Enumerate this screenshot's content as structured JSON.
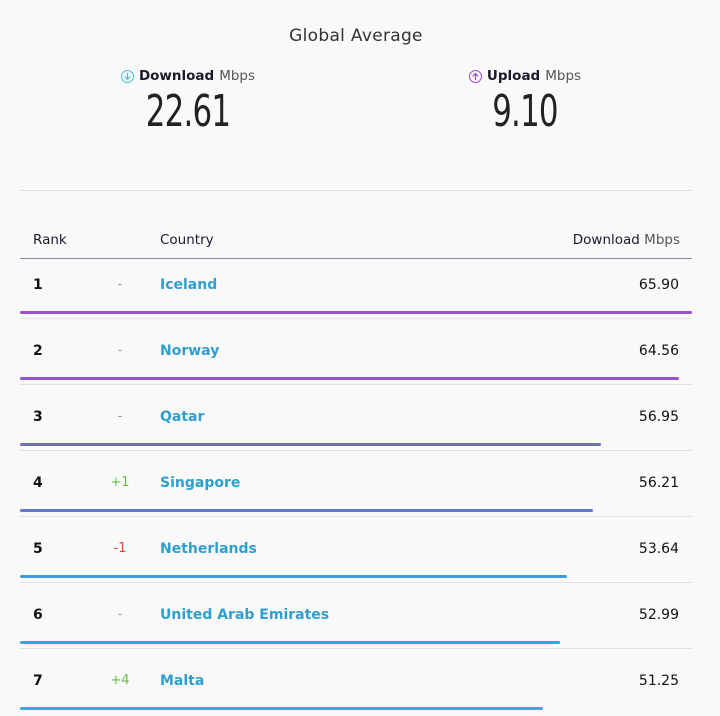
{
  "header": {
    "title": "Global Average"
  },
  "download": {
    "label": "Download",
    "unit": "Mbps",
    "value": "22.61",
    "icon": "download-arrow-icon",
    "color": "#3ec6d1"
  },
  "upload": {
    "label": "Upload",
    "unit": "Mbps",
    "value": "9.10",
    "icon": "upload-arrow-icon",
    "color": "#a046d6"
  },
  "table": {
    "columns": {
      "rank": "Rank",
      "country": "Country",
      "download": "Download",
      "download_unit": "Mbps"
    },
    "rows": [
      {
        "rank": "1",
        "change": "-",
        "country": "Iceland",
        "value": "65.90",
        "fraction": 1.0,
        "bar_color": "#9c4fd0"
      },
      {
        "rank": "2",
        "change": "-",
        "country": "Norway",
        "value": "64.56",
        "fraction": 0.98,
        "bar_color": "#9553cf"
      },
      {
        "rank": "3",
        "change": "-",
        "country": "Qatar",
        "value": "56.95",
        "fraction": 0.864,
        "bar_color": "#6d6bd0"
      },
      {
        "rank": "4",
        "change": "+1",
        "country": "Singapore",
        "value": "56.21",
        "fraction": 0.853,
        "bar_color": "#617ad2"
      },
      {
        "rank": "5",
        "change": "-1",
        "country": "Netherlands",
        "value": "53.64",
        "fraction": 0.814,
        "bar_color": "#3f9ad8"
      },
      {
        "rank": "6",
        "change": "-",
        "country": "United Arab Emirates",
        "value": "52.99",
        "fraction": 0.804,
        "bar_color": "#34a5dc"
      },
      {
        "rank": "7",
        "change": "+4",
        "country": "Malta",
        "value": "51.25",
        "fraction": 0.778,
        "bar_color": "#2fb0dd"
      }
    ]
  }
}
